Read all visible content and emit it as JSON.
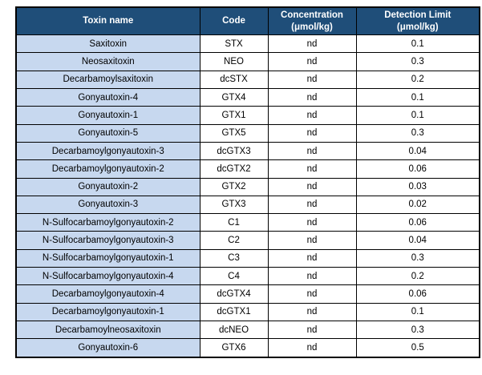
{
  "chart_data": {
    "type": "table",
    "title": "",
    "columns": [
      "Toxin name",
      "Code",
      "Concentration\n(μmol/kg)",
      "Detection Limit\n(μmol/kg)"
    ],
    "rows": [
      [
        "Saxitoxin",
        "STX",
        "nd",
        "0.1"
      ],
      [
        "Neosaxitoxin",
        "NEO",
        "nd",
        "0.3"
      ],
      [
        "Decarbamoylsaxitoxin",
        "dcSTX",
        "nd",
        "0.2"
      ],
      [
        "Gonyautoxin-4",
        "GTX4",
        "nd",
        "0.1"
      ],
      [
        "Gonyautoxin-1",
        "GTX1",
        "nd",
        "0.1"
      ],
      [
        "Gonyautoxin-5",
        "GTX5",
        "nd",
        "0.3"
      ],
      [
        "Decarbamoylgonyautoxin-3",
        "dcGTX3",
        "nd",
        "0.04"
      ],
      [
        "Decarbamoylgonyautoxin-2",
        "dcGTX2",
        "nd",
        "0.06"
      ],
      [
        "Gonyautoxin-2",
        "GTX2",
        "nd",
        "0.03"
      ],
      [
        "Gonyautoxin-3",
        "GTX3",
        "nd",
        "0.02"
      ],
      [
        "N-Sulfocarbamoylgonyautoxin-2",
        "C1",
        "nd",
        "0.06"
      ],
      [
        "N-Sulfocarbamoylgonyautoxin-3",
        "C2",
        "nd",
        "0.04"
      ],
      [
        "N-Sulfocarbamoylgonyautoxin-1",
        "C3",
        "nd",
        "0.3"
      ],
      [
        "N-Sulfocarbamoylgonyautoxin-4",
        "C4",
        "nd",
        "0.2"
      ],
      [
        "Decarbamoylgonyautoxin-4",
        "dcGTX4",
        "nd",
        "0.06"
      ],
      [
        "Decarbamoylgonyautoxin-1",
        "dcGTX1",
        "nd",
        "0.1"
      ],
      [
        "Decarbamoylneosaxitoxin",
        "dcNEO",
        "nd",
        "0.3"
      ],
      [
        "Gonyautoxin-6",
        "GTX6",
        "nd",
        "0.5"
      ]
    ],
    "layout": {
      "grid": "all-borders",
      "header_position": "top"
    }
  },
  "colors": {
    "header_bg": "#1F4E79",
    "header_text": "#FFFFFF",
    "first_column_bg": "#C7D8EF",
    "cell_bg": "#FFFFFF",
    "border": "#000000",
    "cell_text": "#000000"
  }
}
